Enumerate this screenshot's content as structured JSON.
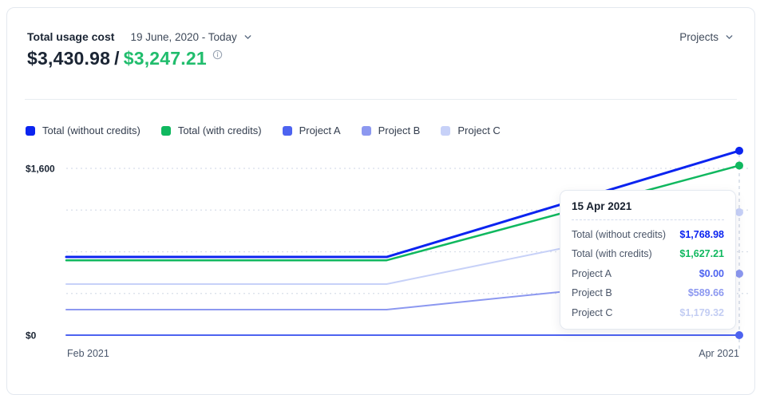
{
  "header": {
    "title": "Total usage cost",
    "date_range": "19 June, 2020 - Today",
    "projects_dropdown": "Projects",
    "amount_primary": "$3,430.98",
    "amount_separator": "/",
    "amount_secondary": "$3,247.21"
  },
  "colors": {
    "amount_secondary_green": "#21bd6d",
    "gridline": "#d8dee9",
    "crosshair": "#c8d1df",
    "card_border": "#e3e8ef"
  },
  "chart_data": {
    "type": "line",
    "x_axis": {
      "labels": [
        {
          "label": "Feb 2021",
          "anchor": "start"
        },
        {
          "label": "Apr 2021",
          "anchor": "end"
        }
      ]
    },
    "y_axis": {
      "ticks": [
        {
          "label": "$1,600",
          "value": 1600
        },
        {
          "label": "$0",
          "value": 0
        }
      ],
      "gridline_values": [
        400,
        800,
        1200,
        1600
      ],
      "max": 1600
    },
    "breakpoint_fraction": 0.476,
    "series": [
      {
        "name": "Total (without credits)",
        "color": "#0b24f0",
        "flat_value": 750,
        "final_value": 1768.98,
        "final_label": "$1,768.98",
        "width": 3
      },
      {
        "name": "Total (with credits)",
        "color": "#10b85f",
        "flat_value": 718,
        "final_value": 1627.21,
        "final_label": "$1,627.21",
        "width": 2.5
      },
      {
        "name": "Project A",
        "color": "#4d63f0",
        "flat_value": 0,
        "final_value": 0,
        "final_label": "$0.00",
        "width": 2
      },
      {
        "name": "Project B",
        "color": "#8c98f0",
        "flat_value": 245,
        "final_value": 589.66,
        "final_label": "$589.66",
        "width": 2
      },
      {
        "name": "Project C",
        "color": "#c7d1f8",
        "flat_value": 490,
        "final_value": 1179.32,
        "final_label": "$1,179.32",
        "width": 2
      }
    ],
    "tooltip": {
      "date": "15 Apr 2021",
      "rows": [
        {
          "label": "Total (without credits)",
          "value": "$1,768.98",
          "color": "#0b24f0"
        },
        {
          "label": "Total (with credits)",
          "value": "$1,627.21",
          "color": "#10b85f"
        },
        {
          "label": "Project A",
          "value": "$0.00",
          "color": "#4d63f0"
        },
        {
          "label": "Project B",
          "value": "$589.66",
          "color": "#8c98f0"
        },
        {
          "label": "Project C",
          "value": "$1,179.32",
          "color": "#c3cdf3"
        }
      ]
    }
  }
}
